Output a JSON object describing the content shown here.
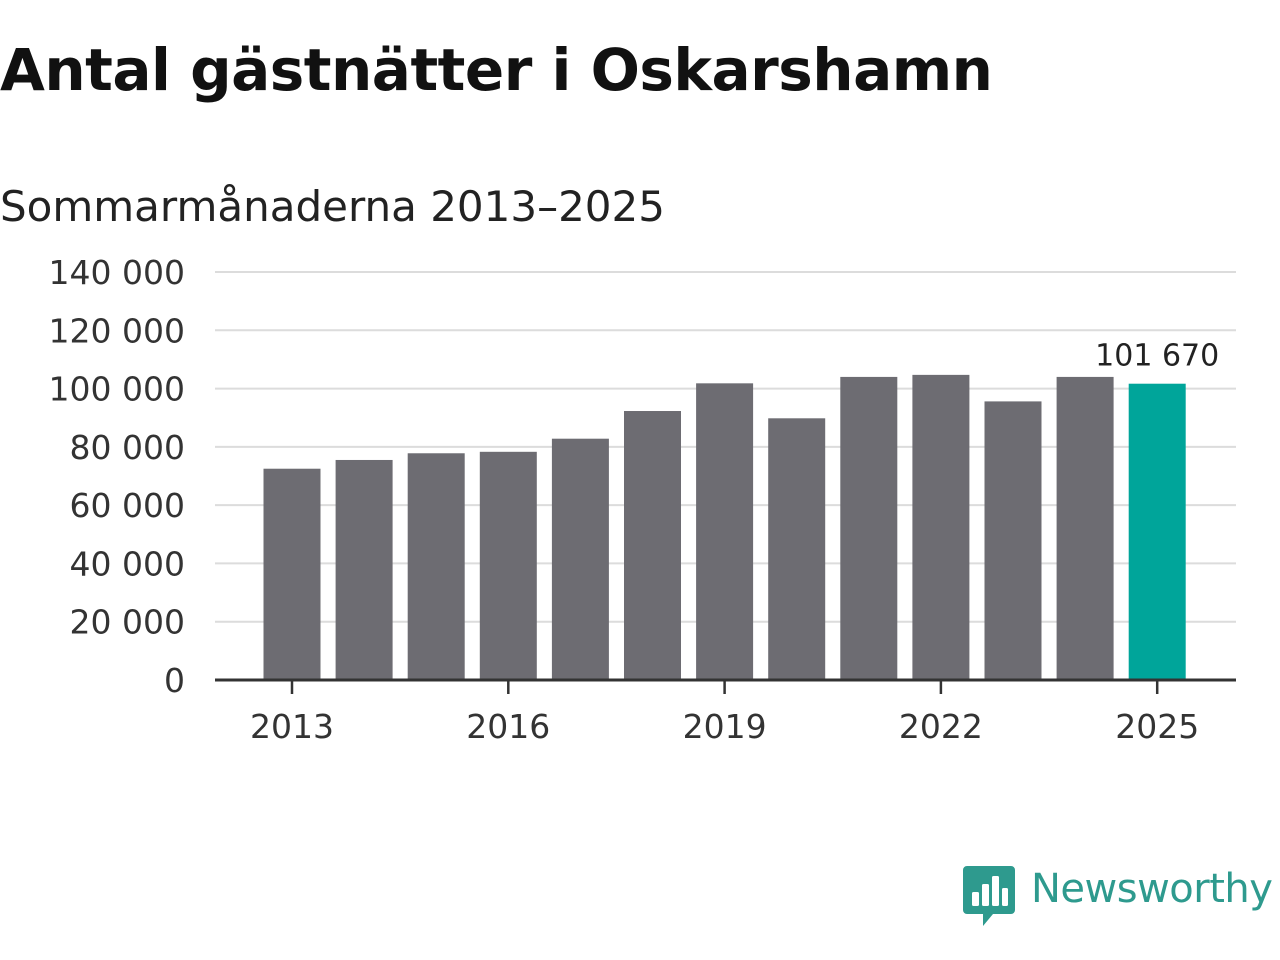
{
  "title": "Antal gästnätter i Oskarshamn",
  "subtitle": "Sommarmånaderna 2013–2025",
  "brand": {
    "name": "Newsworthy",
    "icon": "newsworthy-logo-icon",
    "color": "#2e9a8e"
  },
  "colors": {
    "bar": "#6d6c72",
    "highlight": "#00a59a",
    "grid": "#dcdcdc",
    "axis": "#333333"
  },
  "chart_data": {
    "type": "bar",
    "categories": [
      "2013",
      "2014",
      "2015",
      "2016",
      "2017",
      "2018",
      "2019",
      "2020",
      "2021",
      "2022",
      "2023",
      "2024",
      "2025"
    ],
    "values": [
      72500,
      75500,
      77800,
      78300,
      82800,
      92300,
      101800,
      89800,
      104000,
      104700,
      95600,
      104000,
      101670
    ],
    "highlight_index": 12,
    "data_label": {
      "index": 12,
      "text": "101 670"
    },
    "x_tick_labels": [
      "2013",
      "2016",
      "2019",
      "2022",
      "2025"
    ],
    "y_ticks": [
      {
        "value": 0,
        "label": "0"
      },
      {
        "value": 20000,
        "label": "20 000"
      },
      {
        "value": 40000,
        "label": "40 000"
      },
      {
        "value": 60000,
        "label": "60 000"
      },
      {
        "value": 80000,
        "label": "80 000"
      },
      {
        "value": 100000,
        "label": "100 000"
      },
      {
        "value": 120000,
        "label": "120 000"
      },
      {
        "value": 140000,
        "label": "140 000"
      }
    ],
    "ylim": [
      0,
      140000
    ],
    "grid": true,
    "xlabel": "",
    "ylabel": ""
  }
}
